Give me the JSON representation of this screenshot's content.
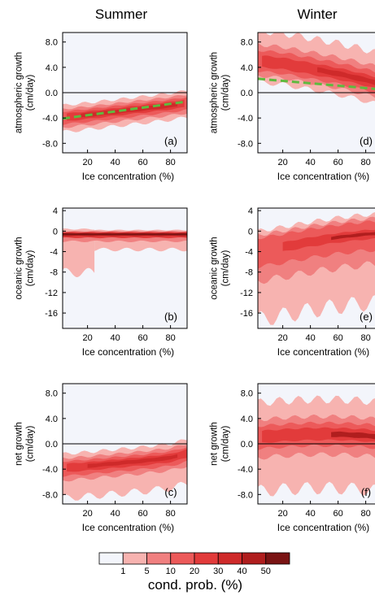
{
  "figure": {
    "column_titles": [
      "Summer",
      "Winter"
    ],
    "colorbar": {
      "title": "cond. prob. (%)",
      "levels": [
        "1",
        "5",
        "10",
        "20",
        "30",
        "40",
        "50"
      ],
      "colors": [
        "#f3f5fb",
        "#f7b3b0",
        "#f08080",
        "#ec5a5a",
        "#e23b3b",
        "#cf2a2a",
        "#b01e1e",
        "#7a1414"
      ]
    }
  },
  "chart_data": [
    {
      "type": "heatmap",
      "panel": "(a)",
      "season": "Summer",
      "xlabel": "Ice concentration (%)",
      "ylabel": [
        "atmospheric growth",
        "(cm/day)"
      ],
      "xlim": [
        2,
        92
      ],
      "ylim": [
        -9.5,
        9.5
      ],
      "xticks": [
        20,
        40,
        60,
        80
      ],
      "yticks": [
        -8.0,
        -4.0,
        0.0,
        4.0,
        8.0
      ],
      "ytick_labels": [
        "-8.0",
        "-4.0",
        "0.0",
        "4.0",
        "8.0"
      ],
      "zero_line": true,
      "fit_line": {
        "x": [
          2,
          92
        ],
        "y": [
          -4.1,
          -1.4
        ]
      },
      "center": {
        "x": [
          2,
          20,
          40,
          60,
          80,
          92
        ],
        "y": [
          -3.9,
          -3.5,
          -3.0,
          -2.5,
          -2.0,
          -1.6
        ]
      },
      "spread_levels": [
        {
          "up": 1.9,
          "dn": 2.3,
          "xs": 0,
          "xe": 92,
          "color": 1
        },
        {
          "up": 1.3,
          "dn": 1.6,
          "xs": 2,
          "xe": 92,
          "color": 2
        },
        {
          "up": 0.9,
          "dn": 1.1,
          "xs": 2,
          "xe": 92,
          "color": 3
        },
        {
          "up": 0.55,
          "dn": 0.65,
          "xs": 5,
          "xe": 90,
          "color": 4
        },
        {
          "up": 0.3,
          "dn": 0.35,
          "xs": 15,
          "xe": 85,
          "color": 5
        }
      ]
    },
    {
      "type": "heatmap",
      "panel": "(d)",
      "season": "Winter",
      "xlabel": "Ice concentration (%)",
      "ylabel": [
        "atmospheric growth",
        "(cm/day)"
      ],
      "xlim": [
        2,
        92
      ],
      "ylim": [
        -9.5,
        9.5
      ],
      "xticks": [
        20,
        40,
        60,
        80
      ],
      "yticks": [
        -8.0,
        -4.0,
        0.0,
        4.0,
        8.0
      ],
      "ytick_labels": [
        "-8.0",
        "-4.0",
        "0.0",
        "4.0",
        "8.0"
      ],
      "zero_line": true,
      "fit_line": {
        "x": [
          2,
          92
        ],
        "y": [
          2.2,
          0.5
        ]
      },
      "center": {
        "x": [
          2,
          20,
          40,
          60,
          80,
          92
        ],
        "y": [
          5.0,
          4.6,
          3.8,
          3.0,
          2.0,
          1.3
        ]
      },
      "spread_levels": [
        {
          "up": 4.8,
          "dn": 3.3,
          "xs": 2,
          "xe": 92,
          "color": 1
        },
        {
          "up": 2.6,
          "dn": 2.3,
          "xs": 2,
          "xe": 92,
          "color": 2
        },
        {
          "up": 1.7,
          "dn": 1.6,
          "xs": 2,
          "xe": 92,
          "color": 3
        },
        {
          "up": 0.9,
          "dn": 0.9,
          "xs": 5,
          "xe": 92,
          "color": 4
        },
        {
          "up": 0.4,
          "dn": 0.4,
          "xs": 45,
          "xe": 92,
          "color": 5
        }
      ]
    },
    {
      "type": "heatmap",
      "panel": "(b)",
      "season": "Summer",
      "xlabel": "Ice concentration (%)",
      "ylabel": [
        "oceanic growth",
        "(cm/day)"
      ],
      "xlim": [
        2,
        92
      ],
      "ylim": [
        -19,
        4.5
      ],
      "xticks": [
        20,
        40,
        60,
        80
      ],
      "yticks": [
        -16,
        -12,
        -8,
        -4,
        0,
        4
      ],
      "ytick_labels": [
        "-16",
        "-12",
        "-8",
        "-4",
        "0",
        "4"
      ],
      "zero_line": false,
      "center": {
        "x": [
          2,
          20,
          40,
          60,
          80,
          92
        ],
        "y": [
          -0.6,
          -0.6,
          -0.6,
          -0.6,
          -0.6,
          -0.6
        ]
      },
      "spread_levels": [
        {
          "up": 1.0,
          "dn": 7.5,
          "xs": 2,
          "xe": 25,
          "color": 1
        },
        {
          "up": 0.8,
          "dn": 3.0,
          "xs": 25,
          "xe": 92,
          "color": 1
        },
        {
          "up": 0.6,
          "dn": 1.4,
          "xs": 2,
          "xe": 92,
          "color": 2
        },
        {
          "up": 0.4,
          "dn": 0.7,
          "xs": 2,
          "xe": 92,
          "color": 4
        },
        {
          "up": 0.25,
          "dn": 0.35,
          "xs": 2,
          "xe": 92,
          "color": 6
        },
        {
          "up": 0.12,
          "dn": 0.15,
          "xs": 2,
          "xe": 92,
          "color": 7
        }
      ]
    },
    {
      "type": "heatmap",
      "panel": "(e)",
      "season": "Winter",
      "xlabel": "Ice concentration (%)",
      "ylabel": [
        "oceanic growth",
        "(cm/day)"
      ],
      "xlim": [
        2,
        92
      ],
      "ylim": [
        -19,
        4.5
      ],
      "xticks": [
        20,
        40,
        60,
        80
      ],
      "yticks": [
        -16,
        -12,
        -8,
        -4,
        0,
        4
      ],
      "ytick_labels": [
        "-16",
        "-12",
        "-8",
        "-4",
        "0",
        "4"
      ],
      "zero_line": false,
      "center": {
        "x": [
          2,
          20,
          40,
          60,
          80,
          92
        ],
        "y": [
          -3.8,
          -3.0,
          -2.0,
          -1.2,
          -0.6,
          -0.4
        ]
      },
      "spread_levels": [
        {
          "up": 3.8,
          "dn": 13.5,
          "xs": 2,
          "xe": 92,
          "color": 1
        },
        {
          "up": 3.0,
          "dn": 6.0,
          "xs": 2,
          "xe": 92,
          "color": 2
        },
        {
          "up": 2.4,
          "dn": 3.2,
          "xs": 2,
          "xe": 92,
          "color": 3
        },
        {
          "up": 0.8,
          "dn": 1.0,
          "xs": 20,
          "xe": 92,
          "color": 4
        },
        {
          "up": 0.3,
          "dn": 0.3,
          "xs": 55,
          "xe": 92,
          "color": 6
        }
      ]
    },
    {
      "type": "heatmap",
      "panel": "(c)",
      "season": "Summer",
      "xlabel": "Ice concentration (%)",
      "ylabel": [
        "net growth",
        "(cm/day)"
      ],
      "xlim": [
        2,
        92
      ],
      "ylim": [
        -9.5,
        9.5
      ],
      "xticks": [
        20,
        40,
        60,
        80
      ],
      "yticks": [
        -8.0,
        -4.0,
        0.0,
        4.0,
        8.0
      ],
      "ytick_labels": [
        "-8.0",
        "-4.0",
        "0.0",
        "4.0",
        "8.0"
      ],
      "zero_line": true,
      "center": {
        "x": [
          2,
          20,
          40,
          60,
          80,
          92
        ],
        "y": [
          -3.8,
          -3.5,
          -3.1,
          -2.7,
          -2.2,
          -1.5
        ]
      },
      "spread_levels": [
        {
          "up": 2.2,
          "dn": 4.8,
          "xs": 2,
          "xe": 92,
          "color": 1
        },
        {
          "up": 1.5,
          "dn": 2.0,
          "xs": 2,
          "xe": 92,
          "color": 2
        },
        {
          "up": 1.0,
          "dn": 1.3,
          "xs": 2,
          "xe": 92,
          "color": 3
        },
        {
          "up": 0.6,
          "dn": 0.7,
          "xs": 5,
          "xe": 92,
          "color": 4
        },
        {
          "up": 0.3,
          "dn": 0.3,
          "xs": 20,
          "xe": 85,
          "color": 5
        }
      ]
    },
    {
      "type": "heatmap",
      "panel": "(f)",
      "season": "Winter",
      "xlabel": "Ice concentration (%)",
      "ylabel": [
        "net growth",
        "(cm/day)"
      ],
      "xlim": [
        2,
        92
      ],
      "ylim": [
        -9.5,
        9.5
      ],
      "xticks": [
        20,
        40,
        60,
        80
      ],
      "yticks": [
        -8.0,
        -4.0,
        0.0,
        4.0,
        8.0
      ],
      "ytick_labels": [
        "-8.0",
        "-4.0",
        "0.0",
        "4.0",
        "8.0"
      ],
      "zero_line": true,
      "center": {
        "x": [
          2,
          20,
          40,
          60,
          80,
          92
        ],
        "y": [
          1.0,
          1.3,
          1.5,
          1.5,
          1.3,
          1.0
        ]
      },
      "spread_levels": [
        {
          "up": 5.5,
          "dn": 8.5,
          "xs": 2,
          "xe": 92,
          "color": 1
        },
        {
          "up": 2.8,
          "dn": 3.2,
          "xs": 2,
          "xe": 92,
          "color": 2
        },
        {
          "up": 1.8,
          "dn": 1.8,
          "xs": 2,
          "xe": 92,
          "color": 3
        },
        {
          "up": 1.0,
          "dn": 0.9,
          "xs": 5,
          "xe": 92,
          "color": 4
        },
        {
          "up": 0.4,
          "dn": 0.4,
          "xs": 55,
          "xe": 92,
          "color": 6
        }
      ]
    }
  ]
}
